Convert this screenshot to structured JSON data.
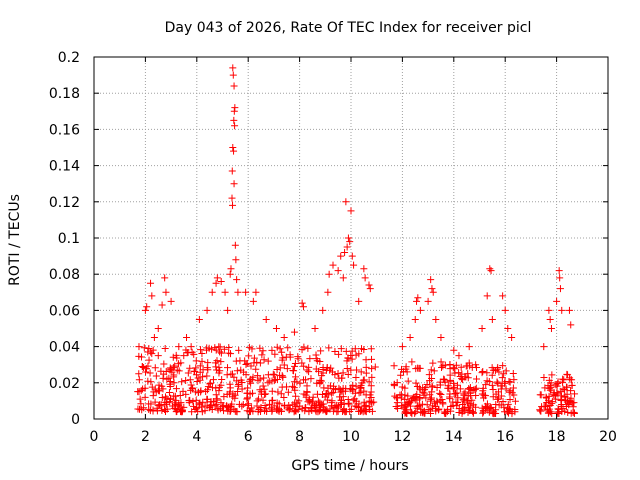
{
  "chart_data": {
    "type": "scatter",
    "title": "Day 043 of 2026, Rate Of TEC Index for receiver picl",
    "xlabel": "GPS time / hours",
    "ylabel": "ROTI / TECUs",
    "xlim": [
      0,
      20
    ],
    "ylim": [
      0,
      0.2
    ],
    "grid": true,
    "marker": "+",
    "colors": {
      "series": "#ff0000",
      "grid": "#a0a0a0",
      "axis": "#000000"
    },
    "xticks": [
      {
        "value": 0,
        "label": "0"
      },
      {
        "value": 2,
        "label": "2"
      },
      {
        "value": 4,
        "label": "4"
      },
      {
        "value": 6,
        "label": "6"
      },
      {
        "value": 8,
        "label": "8"
      },
      {
        "value": 10,
        "label": "10"
      },
      {
        "value": 12,
        "label": "12"
      },
      {
        "value": 14,
        "label": "14"
      },
      {
        "value": 16,
        "label": "16"
      },
      {
        "value": 18,
        "label": "18"
      },
      {
        "value": 20,
        "label": "20"
      }
    ],
    "yticks": [
      {
        "value": 0,
        "label": "0"
      },
      {
        "value": 0.02,
        "label": "0.02"
      },
      {
        "value": 0.04,
        "label": "0.04"
      },
      {
        "value": 0.06,
        "label": "0.06"
      },
      {
        "value": 0.08,
        "label": "0.08"
      },
      {
        "value": 0.1,
        "label": "0.1"
      },
      {
        "value": 0.12,
        "label": "0.12"
      },
      {
        "value": 0.14,
        "label": "0.14"
      },
      {
        "value": 0.16,
        "label": "0.16"
      },
      {
        "value": 0.18,
        "label": "0.18"
      },
      {
        "value": 0.2,
        "label": "0.2"
      }
    ],
    "dense_segments": [
      {
        "x_start": 1.65,
        "x_end": 10.95,
        "y_min": 0.004,
        "y_typical_max": 0.04
      },
      {
        "x_start": 11.65,
        "x_end": 14.9,
        "y_min": 0.003,
        "y_typical_max": 0.032
      },
      {
        "x_start": 15.1,
        "x_end": 16.4,
        "y_min": 0.003,
        "y_typical_max": 0.03
      },
      {
        "x_start": 17.3,
        "x_end": 18.7,
        "y_min": 0.003,
        "y_typical_max": 0.025
      }
    ],
    "points": [
      [
        1.75,
        0.04
      ],
      [
        2.0,
        0.06
      ],
      [
        2.05,
        0.062
      ],
      [
        2.2,
        0.075
      ],
      [
        2.25,
        0.068
      ],
      [
        2.35,
        0.045
      ],
      [
        2.5,
        0.05
      ],
      [
        2.65,
        0.063
      ],
      [
        2.75,
        0.078
      ],
      [
        2.8,
        0.07
      ],
      [
        3.0,
        0.065
      ],
      [
        3.3,
        0.04
      ],
      [
        3.6,
        0.045
      ],
      [
        4.1,
        0.055
      ],
      [
        4.4,
        0.06
      ],
      [
        4.6,
        0.07
      ],
      [
        4.75,
        0.075
      ],
      [
        4.8,
        0.078
      ],
      [
        4.95,
        0.076
      ],
      [
        5.1,
        0.07
      ],
      [
        5.2,
        0.06
      ],
      [
        5.3,
        0.08
      ],
      [
        5.33,
        0.083
      ],
      [
        5.4,
        0.194
      ],
      [
        5.42,
        0.19
      ],
      [
        5.45,
        0.184
      ],
      [
        5.48,
        0.172
      ],
      [
        5.46,
        0.17
      ],
      [
        5.44,
        0.165
      ],
      [
        5.47,
        0.162
      ],
      [
        5.4,
        0.15
      ],
      [
        5.43,
        0.148
      ],
      [
        5.38,
        0.137
      ],
      [
        5.45,
        0.13
      ],
      [
        5.37,
        0.122
      ],
      [
        5.39,
        0.118
      ],
      [
        5.5,
        0.096
      ],
      [
        5.52,
        0.088
      ],
      [
        5.55,
        0.077
      ],
      [
        5.6,
        0.07
      ],
      [
        5.9,
        0.07
      ],
      [
        6.2,
        0.065
      ],
      [
        6.3,
        0.07
      ],
      [
        6.7,
        0.055
      ],
      [
        7.1,
        0.05
      ],
      [
        7.4,
        0.045
      ],
      [
        7.8,
        0.048
      ],
      [
        8.1,
        0.064
      ],
      [
        8.15,
        0.062
      ],
      [
        8.6,
        0.05
      ],
      [
        8.9,
        0.06
      ],
      [
        9.1,
        0.07
      ],
      [
        9.15,
        0.08
      ],
      [
        9.3,
        0.085
      ],
      [
        9.5,
        0.082
      ],
      [
        9.6,
        0.09
      ],
      [
        9.7,
        0.078
      ],
      [
        9.75,
        0.092
      ],
      [
        9.8,
        0.12
      ],
      [
        9.85,
        0.095
      ],
      [
        9.9,
        0.1
      ],
      [
        9.95,
        0.098
      ],
      [
        10.0,
        0.115
      ],
      [
        10.05,
        0.09
      ],
      [
        10.1,
        0.085
      ],
      [
        10.3,
        0.065
      ],
      [
        10.5,
        0.083
      ],
      [
        10.55,
        0.078
      ],
      [
        10.7,
        0.074
      ],
      [
        10.75,
        0.072
      ],
      [
        12.0,
        0.04
      ],
      [
        12.3,
        0.045
      ],
      [
        12.5,
        0.055
      ],
      [
        12.55,
        0.065
      ],
      [
        12.6,
        0.067
      ],
      [
        12.7,
        0.06
      ],
      [
        13.0,
        0.065
      ],
      [
        13.1,
        0.077
      ],
      [
        13.15,
        0.072
      ],
      [
        13.2,
        0.07
      ],
      [
        13.3,
        0.055
      ],
      [
        13.5,
        0.045
      ],
      [
        14.0,
        0.038
      ],
      [
        14.2,
        0.035
      ],
      [
        14.6,
        0.04
      ],
      [
        14.85,
        0.03
      ],
      [
        15.1,
        0.05
      ],
      [
        15.3,
        0.068
      ],
      [
        15.4,
        0.083
      ],
      [
        15.45,
        0.082
      ],
      [
        15.5,
        0.055
      ],
      [
        15.9,
        0.068
      ],
      [
        16.0,
        0.06
      ],
      [
        16.1,
        0.05
      ],
      [
        16.25,
        0.045
      ],
      [
        17.5,
        0.04
      ],
      [
        17.7,
        0.06
      ],
      [
        17.75,
        0.055
      ],
      [
        17.8,
        0.05
      ],
      [
        18.0,
        0.065
      ],
      [
        18.1,
        0.082
      ],
      [
        18.12,
        0.078
      ],
      [
        18.15,
        0.072
      ],
      [
        18.2,
        0.06
      ],
      [
        18.5,
        0.06
      ],
      [
        18.55,
        0.052
      ]
    ]
  }
}
